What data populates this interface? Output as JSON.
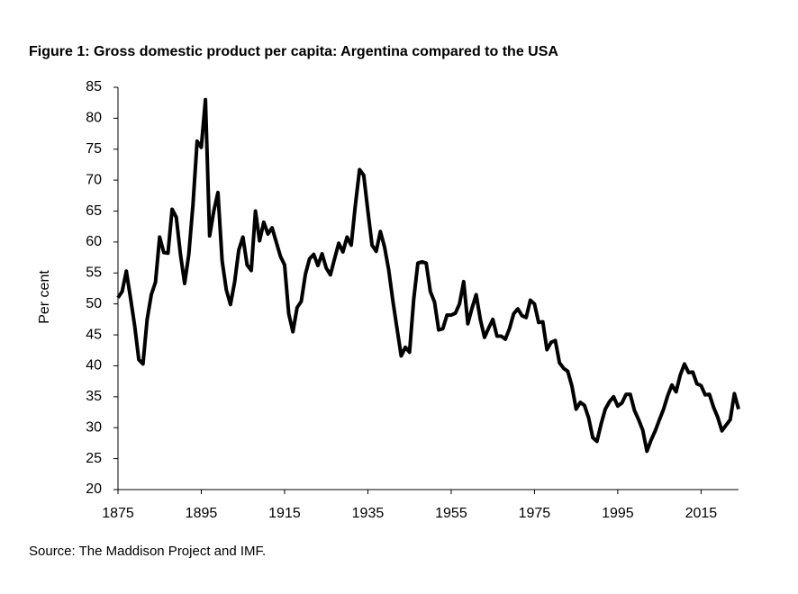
{
  "chart_data": {
    "type": "line",
    "title": "Figure 1: Gross domestic product per capita: Argentina compared to the USA",
    "y_label": "Per cent",
    "source": "Source: The Maddison Project and IMF.",
    "x": [
      1875,
      1876,
      1877,
      1878,
      1879,
      1880,
      1881,
      1882,
      1883,
      1884,
      1885,
      1886,
      1887,
      1888,
      1889,
      1890,
      1891,
      1892,
      1893,
      1894,
      1895,
      1896,
      1897,
      1898,
      1899,
      1900,
      1901,
      1902,
      1903,
      1904,
      1905,
      1906,
      1907,
      1908,
      1909,
      1910,
      1911,
      1912,
      1913,
      1914,
      1915,
      1916,
      1917,
      1918,
      1919,
      1920,
      1921,
      1922,
      1923,
      1924,
      1925,
      1926,
      1927,
      1928,
      1929,
      1930,
      1931,
      1932,
      1933,
      1934,
      1935,
      1936,
      1937,
      1938,
      1939,
      1940,
      1941,
      1942,
      1943,
      1944,
      1945,
      1946,
      1947,
      1948,
      1949,
      1950,
      1951,
      1952,
      1953,
      1954,
      1955,
      1956,
      1957,
      1958,
      1959,
      1960,
      1961,
      1962,
      1963,
      1964,
      1965,
      1966,
      1967,
      1968,
      1969,
      1970,
      1971,
      1972,
      1973,
      1974,
      1975,
      1976,
      1977,
      1978,
      1979,
      1980,
      1981,
      1982,
      1983,
      1984,
      1985,
      1986,
      1987,
      1988,
      1989,
      1990,
      1991,
      1992,
      1993,
      1994,
      1995,
      1996,
      1997,
      1998,
      1999,
      2000,
      2001,
      2002,
      2003,
      2004,
      2005,
      2006,
      2007,
      2008,
      2009,
      2010,
      2011,
      2012,
      2013,
      2014,
      2015,
      2016,
      2017,
      2018,
      2019,
      2020,
      2021,
      2022,
      2023,
      2024
    ],
    "series": [
      {
        "color": "#000000",
        "values": [
          51,
          52,
          55.3,
          51,
          46.5,
          41,
          40.3,
          47.5,
          51.5,
          53.5,
          60.8,
          58.3,
          58.2,
          65.3,
          64,
          58,
          53.3,
          58,
          66,
          76.3,
          75.3,
          83,
          61,
          65,
          68,
          57,
          52.3,
          49.9,
          53.5,
          58.7,
          60.8,
          56.3,
          55.4,
          65,
          60.2,
          63.2,
          61.3,
          62.3,
          60,
          57.7,
          56.3,
          48.4,
          45.5,
          49.4,
          50.4,
          54.8,
          57.3,
          58,
          56.2,
          58.1,
          55.8,
          54.7,
          57.3,
          59.8,
          58.4,
          60.8,
          59.5,
          66,
          71.7,
          70.8,
          65,
          59.5,
          58.5,
          61.7,
          59.2,
          55.5,
          50.5,
          46,
          41.6,
          43,
          42.2,
          50.7,
          56.6,
          56.8,
          56.6,
          52,
          50.3,
          45.8,
          46,
          48.2,
          48.2,
          48.5,
          50,
          53.6,
          46.8,
          49.3,
          51.5,
          47.5,
          44.6,
          46.1,
          47.5,
          44.8,
          44.8,
          44.3,
          46,
          48.4,
          49.2,
          48.1,
          47.8,
          50.6,
          50,
          47,
          47.1,
          42.6,
          43.8,
          44.1,
          40.5,
          39.6,
          39.1,
          36.7,
          33,
          34.1,
          33.6,
          31.6,
          28.4,
          27.8,
          30.6,
          33,
          34.2,
          35,
          33.5,
          34,
          35.4,
          35.4,
          32.8,
          31.3,
          29.6,
          26.2,
          28,
          29.5,
          31.3,
          33,
          35.2,
          36.9,
          35.8,
          38.5,
          40.3,
          38.9,
          39,
          37.1,
          36.8,
          35.3,
          35.4,
          33.3,
          31.7,
          29.5,
          30.4,
          31.3,
          35.5,
          33
        ]
      }
    ],
    "xlim": [
      1875,
      2024
    ],
    "xticks": [
      1875,
      1895,
      1915,
      1935,
      1955,
      1975,
      1995,
      2015
    ],
    "ylim": [
      20,
      85
    ],
    "yticks": [
      20,
      25,
      30,
      35,
      40,
      45,
      50,
      55,
      60,
      65,
      70,
      75,
      80,
      85
    ],
    "grid": false
  }
}
